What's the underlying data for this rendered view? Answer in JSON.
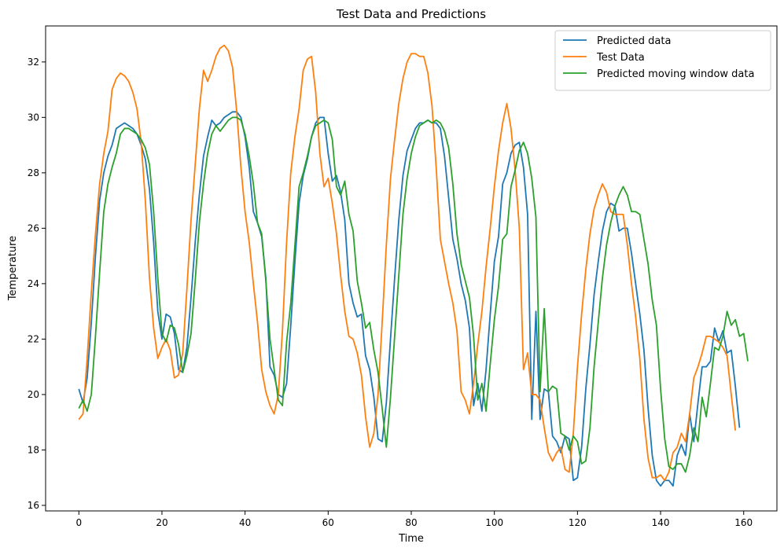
{
  "chart_data": {
    "type": "line",
    "title": "Test Data and Predictions",
    "xlabel": "Time",
    "ylabel": "Temperature",
    "xlim": [
      -8,
      168
    ],
    "ylim": [
      15.8,
      33.3
    ],
    "x_ticks": [
      0,
      20,
      40,
      60,
      80,
      100,
      120,
      140,
      160
    ],
    "y_ticks": [
      16,
      18,
      20,
      22,
      24,
      26,
      28,
      30,
      32
    ],
    "legend_position": "top-right",
    "grid": false,
    "series": [
      {
        "name": "Predicted data",
        "color": "#1f77b4",
        "values": [
          20.2,
          19.7,
          20.6,
          22.6,
          25.0,
          27.0,
          28.0,
          28.6,
          29.0,
          29.6,
          29.7,
          29.8,
          29.7,
          29.6,
          29.4,
          29.0,
          28.5,
          27.4,
          25.5,
          23.0,
          22.0,
          22.9,
          22.8,
          22.2,
          20.9,
          20.8,
          21.7,
          23.5,
          25.5,
          27.2,
          28.6,
          29.3,
          29.9,
          29.7,
          29.8,
          30.0,
          30.1,
          30.2,
          30.2,
          30.0,
          29.3,
          28.2,
          26.6,
          26.2,
          25.7,
          24.2,
          21.0,
          20.7,
          20.0,
          19.9,
          20.4,
          22.5,
          24.8,
          26.9,
          27.9,
          28.5,
          29.3,
          29.8,
          30.0,
          30.0,
          28.7,
          27.7,
          27.9,
          27.3,
          26.3,
          24.0,
          23.3,
          22.8,
          22.9,
          21.4,
          20.9,
          19.9,
          18.4,
          18.3,
          19.7,
          22.0,
          24.2,
          26.3,
          27.9,
          28.8,
          29.2,
          29.6,
          29.8,
          29.8,
          29.9,
          29.8,
          29.8,
          29.6,
          28.6,
          27.1,
          25.6,
          24.9,
          24.0,
          23.4,
          22.4,
          19.6,
          20.4,
          19.4,
          20.9,
          22.9,
          24.8,
          25.7,
          27.6,
          28.0,
          28.7,
          29.0,
          29.1,
          28.2,
          26.5,
          19.1,
          23.0,
          19.1,
          20.2,
          20.1,
          18.5,
          18.3,
          17.9,
          18.5,
          18.4,
          16.9,
          17.0,
          18.1,
          20.2,
          21.8,
          23.6,
          24.8,
          25.9,
          26.6,
          26.9,
          26.8,
          25.9,
          26.0,
          26.0,
          25.1,
          24.0,
          22.9,
          21.6,
          19.5,
          17.8,
          16.9,
          16.7,
          16.9,
          16.9,
          16.7,
          17.8,
          18.2,
          17.8,
          19.3,
          18.3,
          19.7,
          21.0,
          21.0,
          21.2,
          22.4,
          21.9,
          22.3,
          21.5,
          21.6,
          20.3,
          18.8
        ]
      },
      {
        "name": "Test Data",
        "color": "#ff7f0e",
        "values": [
          19.1,
          19.3,
          21.3,
          23.7,
          25.8,
          27.6,
          28.7,
          29.5,
          31.0,
          31.4,
          31.6,
          31.5,
          31.3,
          30.9,
          30.3,
          29.1,
          27.0,
          24.2,
          22.4,
          21.3,
          21.7,
          22.0,
          21.6,
          20.6,
          20.7,
          21.5,
          23.8,
          26.3,
          28.3,
          30.3,
          31.7,
          31.3,
          31.7,
          32.2,
          32.5,
          32.6,
          32.4,
          31.8,
          30.2,
          28.2,
          26.6,
          25.5,
          24.0,
          22.6,
          20.9,
          20.1,
          19.6,
          19.3,
          20.0,
          22.3,
          25.5,
          28.0,
          29.3,
          30.3,
          31.7,
          32.1,
          32.2,
          30.9,
          28.7,
          27.5,
          27.8,
          26.9,
          25.8,
          24.3,
          23.0,
          22.1,
          22.0,
          21.5,
          20.7,
          19.2,
          18.1,
          18.6,
          20.0,
          22.6,
          25.4,
          27.8,
          29.2,
          30.5,
          31.4,
          32.0,
          32.3,
          32.3,
          32.2,
          32.2,
          31.6,
          30.4,
          28.2,
          25.6,
          24.8,
          24.0,
          23.3,
          22.3,
          20.1,
          19.8,
          19.3,
          20.4,
          21.8,
          23.0,
          24.6,
          26.0,
          27.5,
          28.8,
          29.8,
          30.5,
          29.6,
          28.1,
          26.0,
          20.9,
          21.5,
          20.0,
          20.0,
          19.8,
          18.8,
          17.9,
          17.6,
          17.9,
          18.1,
          17.3,
          17.2,
          18.6,
          21.0,
          22.9,
          24.5,
          25.8,
          26.7,
          27.2,
          27.6,
          27.3,
          26.6,
          26.5,
          26.5,
          26.5,
          25.4,
          24.0,
          22.8,
          21.3,
          19.1,
          17.7,
          17.0,
          17.0,
          17.1,
          16.9,
          17.2,
          17.9,
          18.1,
          18.6,
          18.3,
          19.3,
          20.6,
          21.0,
          21.5,
          22.1,
          22.1,
          22.0,
          21.9,
          21.7,
          21.4,
          20.0,
          18.7
        ]
      },
      {
        "name": "Predicted moving window data",
        "color": "#2ca02c",
        "values": [
          19.5,
          19.8,
          19.4,
          20.0,
          22.1,
          24.4,
          26.6,
          27.6,
          28.2,
          28.7,
          29.4,
          29.6,
          29.6,
          29.5,
          29.4,
          29.2,
          28.9,
          28.3,
          26.6,
          24.2,
          22.2,
          21.9,
          22.5,
          22.4,
          21.8,
          20.8,
          21.4,
          22.2,
          24.1,
          26.2,
          27.6,
          28.7,
          29.4,
          29.7,
          29.5,
          29.7,
          29.9,
          30.0,
          30.0,
          29.9,
          29.4,
          28.6,
          27.6,
          26.2,
          25.8,
          24.1,
          22.0,
          20.9,
          19.8,
          19.6,
          21.9,
          23.3,
          25.4,
          27.5,
          28.0,
          28.6,
          29.3,
          29.7,
          29.8,
          29.9,
          29.8,
          29.2,
          27.5,
          27.2,
          27.7,
          26.5,
          25.9,
          24.1,
          23.3,
          22.4,
          22.6,
          21.6,
          20.8,
          19.5,
          18.1,
          19.9,
          22.1,
          24.3,
          26.5,
          27.8,
          28.7,
          29.3,
          29.7,
          29.8,
          29.9,
          29.8,
          29.9,
          29.8,
          29.5,
          28.9,
          27.6,
          25.8,
          24.7,
          24.1,
          23.5,
          22.1,
          19.8,
          20.4,
          19.4,
          21.1,
          22.7,
          23.9,
          25.6,
          25.8,
          27.5,
          28.1,
          28.8,
          29.1,
          28.7,
          27.8,
          26.4,
          20.1,
          23.1,
          20.1,
          20.3,
          20.2,
          18.6,
          18.5,
          18.0,
          18.5,
          18.3,
          17.5,
          17.6,
          18.8,
          21.0,
          22.6,
          24.2,
          25.4,
          26.2,
          26.8,
          27.2,
          27.5,
          27.2,
          26.6,
          26.6,
          26.5,
          25.6,
          24.7,
          23.4,
          22.5,
          20.2,
          18.4,
          17.4,
          17.3,
          17.5,
          17.5,
          17.2,
          17.8,
          18.8,
          18.3,
          19.9,
          19.2,
          20.4,
          21.7,
          21.6,
          22.1,
          23.0,
          22.5,
          22.7,
          22.1,
          22.2,
          21.2
        ]
      }
    ]
  }
}
